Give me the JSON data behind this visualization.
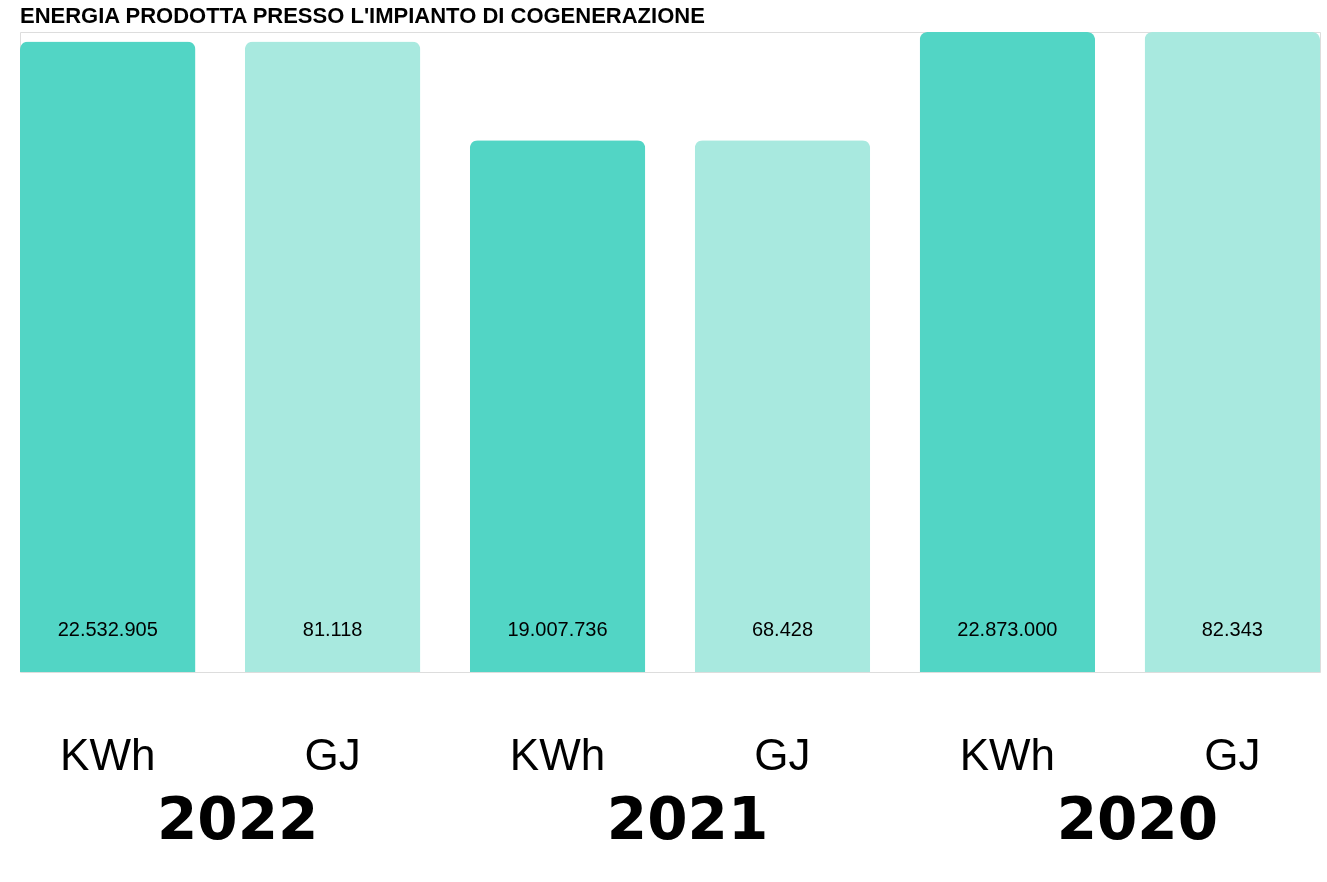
{
  "chart_data": {
    "type": "bar",
    "title": "ENERGIA PRODOTTA PRESSO L'IMPIANTO DI COGENERAZIONE",
    "categories": [
      "2022",
      "2021",
      "2020"
    ],
    "series": [
      {
        "name": "KWh",
        "color": "#52d5c5",
        "values": [
          22532905,
          19007736,
          22873000
        ],
        "value_labels": [
          "22.532.905",
          "19.007.736",
          "22.873.000"
        ]
      },
      {
        "name": "GJ",
        "color": "#a8e9df",
        "axis": "y2",
        "values": [
          81118,
          68428,
          82343
        ],
        "value_labels": [
          "81.118",
          "68.428",
          "82.343"
        ]
      }
    ],
    "data_labels": true,
    "tick_labels": false
  }
}
